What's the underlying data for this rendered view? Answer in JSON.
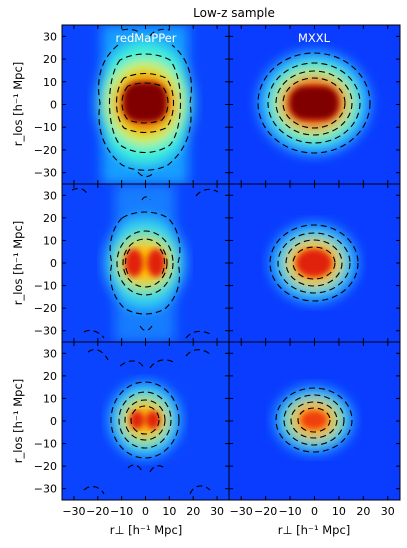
{
  "chart_data": {
    "type": "heatmap",
    "title": "Low-z sample",
    "panel_titles": [
      "redMaPPer",
      "MXXL"
    ],
    "x_label": "r⊥ [h⁻¹ Mpc]",
    "y_label": "r_los [h⁻¹ Mpc]",
    "x_ticks": [
      "−30",
      "−20",
      "−10",
      "0",
      "10",
      "20",
      "30"
    ],
    "x_ticks_right": [
      "−30",
      "−20",
      "−10",
      "0",
      "10",
      "20",
      "30"
    ],
    "y_ticks": [
      "30",
      "20",
      "10",
      "0",
      "−10",
      "−20",
      "−30"
    ],
    "xlim": [
      -35,
      35
    ],
    "ylim": [
      -35,
      35
    ],
    "colormap": "jet",
    "contours": "dashed black",
    "rows": 3,
    "cols": 2,
    "grid": false
  }
}
